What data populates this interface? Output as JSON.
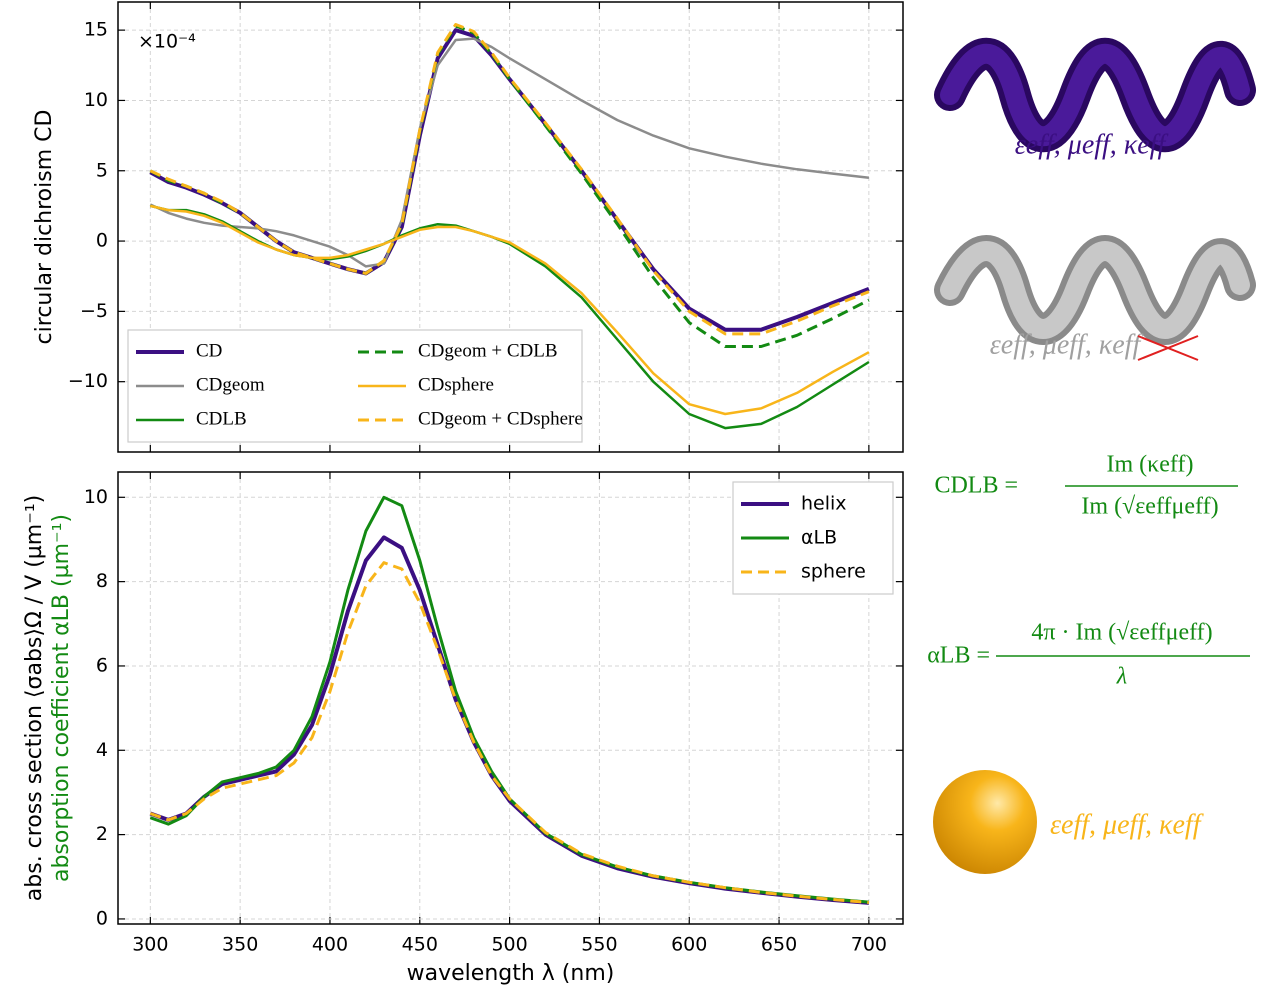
{
  "chart_data": [
    {
      "type": "line",
      "ylabel": "circular dichroism CD",
      "annotation": "×10⁻⁴",
      "x": [
        300,
        310,
        320,
        330,
        340,
        350,
        360,
        370,
        380,
        390,
        400,
        410,
        420,
        430,
        440,
        450,
        460,
        470,
        480,
        490,
        500,
        520,
        540,
        560,
        580,
        600,
        620,
        640,
        660,
        680,
        700
      ],
      "xlim": [
        282,
        719
      ],
      "xticks": [
        300,
        350,
        400,
        450,
        500,
        550,
        600,
        650,
        700
      ],
      "ylim": [
        -15,
        17
      ],
      "yticks": [
        {
          "value": -10,
          "label": "−10"
        },
        {
          "value": -5,
          "label": "−5"
        },
        0,
        5,
        10,
        15
      ],
      "grid": true,
      "legend": "lower left",
      "series": [
        {
          "name": "CD",
          "color": "#3b0f82",
          "linestyle": "solid",
          "linewidth": 4,
          "values": [
            4.9,
            4.2,
            3.8,
            3.3,
            2.7,
            2.0,
            1.0,
            0.0,
            -0.8,
            -1.2,
            -1.6,
            -2.0,
            -2.3,
            -1.5,
            1.0,
            7.5,
            13.0,
            15.0,
            14.6,
            13.2,
            11.5,
            8.3,
            5.0,
            1.5,
            -2.0,
            -4.8,
            -6.3,
            -6.3,
            -5.4,
            -4.4,
            -3.4
          ]
        },
        {
          "name": "CDgeom",
          "color": "#8c8c8c",
          "linestyle": "solid",
          "linewidth": 2.5,
          "values": [
            2.6,
            2.0,
            1.6,
            1.3,
            1.1,
            1.0,
            0.9,
            0.7,
            0.4,
            0.0,
            -0.4,
            -1.0,
            -1.8,
            -1.6,
            1.5,
            8.0,
            12.5,
            14.3,
            14.4,
            13.8,
            13.0,
            11.5,
            10.0,
            8.6,
            7.5,
            6.6,
            6.0,
            5.5,
            5.1,
            4.8,
            4.5
          ]
        },
        {
          "name": "CDLB",
          "color": "#138a13",
          "linestyle": "solid",
          "linewidth": 2.5,
          "values": [
            2.5,
            2.2,
            2.2,
            1.9,
            1.4,
            0.7,
            0.0,
            -0.6,
            -1.0,
            -1.2,
            -1.3,
            -1.1,
            -0.7,
            -0.2,
            0.4,
            0.9,
            1.2,
            1.1,
            0.7,
            0.3,
            -0.2,
            -1.8,
            -4.0,
            -7.0,
            -10.0,
            -12.3,
            -13.3,
            -13.0,
            -11.8,
            -10.2,
            -8.6
          ]
        },
        {
          "name": "CDgeom + CDLB",
          "color": "#138a13",
          "linestyle": "dashed",
          "linewidth": 3,
          "values": [
            5.0,
            4.3,
            3.9,
            3.4,
            2.7,
            2.0,
            1.0,
            0.0,
            -0.8,
            -1.2,
            -1.6,
            -2.0,
            -2.3,
            -1.4,
            1.1,
            7.8,
            13.3,
            15.3,
            14.8,
            13.3,
            11.5,
            8.2,
            4.8,
            1.2,
            -2.6,
            -5.8,
            -7.5,
            -7.5,
            -6.7,
            -5.5,
            -4.2
          ]
        },
        {
          "name": "CDsphere",
          "color": "#f8b51a",
          "linestyle": "solid",
          "linewidth": 2.5,
          "values": [
            2.5,
            2.2,
            2.1,
            1.8,
            1.3,
            0.6,
            -0.1,
            -0.6,
            -1.0,
            -1.2,
            -1.2,
            -1.0,
            -0.6,
            -0.2,
            0.3,
            0.8,
            1.0,
            1.0,
            0.7,
            0.3,
            -0.1,
            -1.6,
            -3.7,
            -6.5,
            -9.4,
            -11.6,
            -12.3,
            -11.9,
            -10.8,
            -9.3,
            -7.9
          ]
        },
        {
          "name": "CDgeom + CDsphere",
          "color": "#f8b51a",
          "linestyle": "dashed",
          "linewidth": 3,
          "values": [
            5.0,
            4.4,
            3.9,
            3.4,
            2.8,
            2.0,
            1.0,
            0.0,
            -0.8,
            -1.2,
            -1.6,
            -2.0,
            -2.3,
            -1.4,
            1.2,
            7.9,
            13.4,
            15.4,
            14.9,
            13.4,
            11.6,
            8.4,
            5.1,
            1.6,
            -2.1,
            -5.0,
            -6.6,
            -6.6,
            -5.7,
            -4.6,
            -3.6
          ]
        }
      ]
    },
    {
      "type": "line",
      "xlabel": "wavelength λ (nm)",
      "ylabel": "abs. cross section ⟨σabs⟩Ω / V (µm⁻¹)",
      "ylabel2": "absorption coefficient αLB (µm⁻¹)",
      "x": [
        300,
        310,
        320,
        330,
        340,
        350,
        360,
        370,
        380,
        390,
        400,
        410,
        420,
        430,
        440,
        450,
        460,
        470,
        480,
        490,
        500,
        520,
        540,
        560,
        580,
        600,
        620,
        640,
        660,
        680,
        700
      ],
      "xlim": [
        282,
        719
      ],
      "xticks": [
        300,
        350,
        400,
        450,
        500,
        550,
        600,
        650,
        700
      ],
      "ylim": [
        -0.12,
        10.6
      ],
      "yticks": [
        0,
        2,
        4,
        6,
        8,
        10
      ],
      "grid": true,
      "legend": "upper right",
      "series": [
        {
          "name": "helix",
          "color": "#3b0f82",
          "linestyle": "solid",
          "linewidth": 4,
          "values": [
            2.5,
            2.35,
            2.5,
            2.9,
            3.2,
            3.3,
            3.4,
            3.5,
            3.9,
            4.6,
            5.8,
            7.3,
            8.5,
            9.05,
            8.8,
            7.8,
            6.5,
            5.2,
            4.2,
            3.4,
            2.8,
            2.0,
            1.5,
            1.2,
            1.0,
            0.85,
            0.72,
            0.62,
            0.53,
            0.45,
            0.38
          ]
        },
        {
          "name": "αLB",
          "color": "#138a13",
          "linestyle": "solid",
          "linewidth": 3,
          "values": [
            2.4,
            2.25,
            2.45,
            2.9,
            3.25,
            3.35,
            3.45,
            3.6,
            4.0,
            4.8,
            6.1,
            7.8,
            9.2,
            10.0,
            9.8,
            8.5,
            6.9,
            5.4,
            4.3,
            3.5,
            2.85,
            2.03,
            1.53,
            1.23,
            1.02,
            0.87,
            0.74,
            0.64,
            0.55,
            0.47,
            0.4
          ]
        },
        {
          "name": "sphere",
          "color": "#f8b51a",
          "linestyle": "dashed",
          "linewidth": 3,
          "values": [
            2.5,
            2.35,
            2.5,
            2.85,
            3.1,
            3.2,
            3.3,
            3.4,
            3.7,
            4.3,
            5.4,
            6.8,
            7.9,
            8.45,
            8.3,
            7.5,
            6.4,
            5.2,
            4.2,
            3.4,
            2.85,
            2.05,
            1.55,
            1.25,
            1.02,
            0.87,
            0.74,
            0.63,
            0.54,
            0.46,
            0.39
          ]
        }
      ]
    }
  ],
  "side_panel": {
    "helix_label": "εeff, μeff, κeff",
    "geom_label": "εeff, μeff, κeff",
    "formula_cd": {
      "lhs": "CDLB =",
      "num": "Im (κeff)",
      "den": "Im (√εeffμeff)"
    },
    "formula_alpha": {
      "lhs": "αLB =",
      "num": "4π · Im (√εeffμeff)",
      "den": "λ"
    },
    "sphere_label": "εeff, μeff, κeff"
  }
}
